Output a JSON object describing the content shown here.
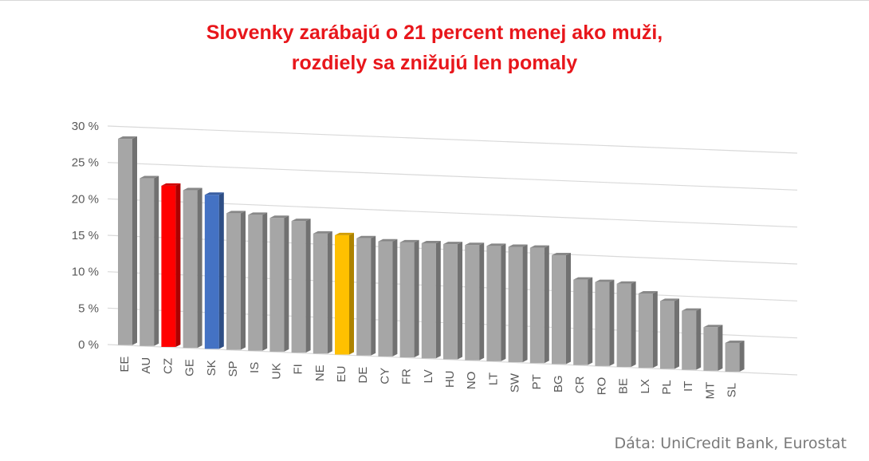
{
  "title_line1": "Slovenky zarábajú o 21 percent menej ako muži,",
  "title_line2": "rozdiely sa znižujú len pomaly",
  "source": "Dáta: UniCredit Bank, Eurostat",
  "colors": {
    "default": "#a6a6a6",
    "CZ": "#ff0000",
    "SK": "#4472c4",
    "EU": "#ffc000",
    "title": "#e8161b"
  },
  "chart_data": {
    "type": "bar",
    "title": "Slovenky zarábajú o 21 percent menej ako muži, rozdiely sa znižujú len pomaly",
    "xlabel": "",
    "ylabel": "",
    "ylim": [
      0,
      30
    ],
    "yticks": [
      "0 %",
      "5 %",
      "10 %",
      "15 %",
      "20 %",
      "25 %",
      "30 %"
    ],
    "grid": true,
    "categories": [
      "EE",
      "AU",
      "CZ",
      "GE",
      "SK",
      "SP",
      "IS",
      "UK",
      "FI",
      "NE",
      "EU",
      "DE",
      "CY",
      "FR",
      "LV",
      "HU",
      "NO",
      "LT",
      "SW",
      "PT",
      "BG",
      "CR",
      "RO",
      "BE",
      "LX",
      "PL",
      "IT",
      "MT",
      "SL"
    ],
    "values": [
      28.3,
      23.0,
      22.1,
      21.6,
      21.1,
      18.7,
      18.6,
      18.3,
      18.0,
      16.4,
      16.3,
      16.0,
      15.7,
      15.7,
      15.7,
      15.7,
      15.7,
      15.7,
      15.7,
      15.7,
      14.8,
      11.6,
      11.4,
      11.3,
      10.1,
      9.2,
      8.0,
      5.9,
      3.9
    ]
  }
}
